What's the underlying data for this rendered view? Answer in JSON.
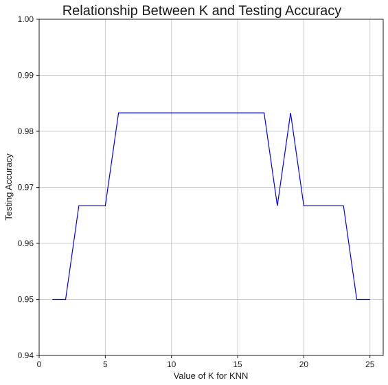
{
  "chart_data": {
    "type": "line",
    "title": "Relationship Between K and Testing Accuracy",
    "xlabel": "Value of K for KNN",
    "ylabel": "Testing Accuracy",
    "xlim": [
      0,
      26
    ],
    "ylim": [
      0.94,
      1.0
    ],
    "xticks": [
      0,
      5,
      10,
      15,
      20,
      25
    ],
    "xtick_labels": [
      "0",
      "5",
      "10",
      "15",
      "20",
      "25"
    ],
    "yticks": [
      0.94,
      0.95,
      0.96,
      0.97,
      0.98,
      0.99,
      1.0
    ],
    "ytick_labels": [
      "0.94",
      "0.95",
      "0.96",
      "0.97",
      "0.98",
      "0.99",
      "1.00"
    ],
    "grid": true,
    "series": [
      {
        "color": "#0000ff",
        "x": [
          1,
          2,
          3,
          4,
          5,
          6,
          7,
          8,
          9,
          10,
          11,
          12,
          13,
          14,
          15,
          16,
          17,
          18,
          19,
          20,
          21,
          22,
          23,
          24,
          25
        ],
        "y": [
          0.95,
          0.95,
          0.9667,
          0.9667,
          0.9667,
          0.9833,
          0.9833,
          0.9833,
          0.9833,
          0.9833,
          0.9833,
          0.9833,
          0.9833,
          0.9833,
          0.9833,
          0.9833,
          0.9833,
          0.9667,
          0.9833,
          0.9667,
          0.9667,
          0.9667,
          0.9667,
          0.95,
          0.95
        ]
      }
    ]
  }
}
